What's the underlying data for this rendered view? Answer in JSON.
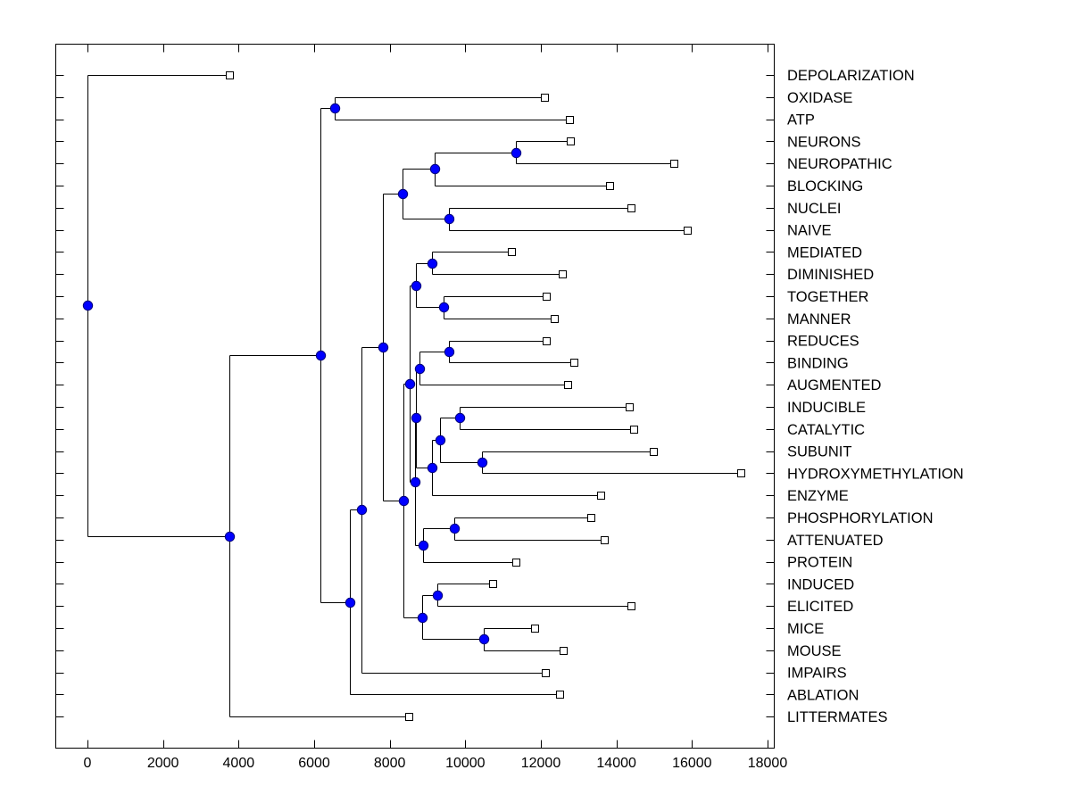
{
  "chart_data": {
    "type": "dendrogram",
    "title": "",
    "xlabel": "",
    "ylabel": "",
    "xlim": [
      -850,
      18170
    ],
    "x_ticks": [
      0,
      2000,
      4000,
      6000,
      8000,
      10000,
      12000,
      14000,
      16000,
      18000
    ],
    "x_tick_labels": [
      "0",
      "2000",
      "4000",
      "6000",
      "8000",
      "10000",
      "12000",
      "14000",
      "16000",
      "18000"
    ],
    "label_position": "right",
    "grid": false,
    "leaf_marker": "white square",
    "node_marker": "blue circle",
    "colors": {
      "node": "#0000ff",
      "leaf": "#ffffff",
      "line": "#000000"
    },
    "leaves": [
      {
        "label": "DEPOLARIZATION",
        "x": 3760
      },
      {
        "label": "OXIDASE",
        "x": 12100
      },
      {
        "label": "ATP",
        "x": 12760
      },
      {
        "label": "NEURONS",
        "x": 12780
      },
      {
        "label": "NEUROPATHIC",
        "x": 15520
      },
      {
        "label": "BLOCKING",
        "x": 13820
      },
      {
        "label": "NUCLEI",
        "x": 14390
      },
      {
        "label": "NAIVE",
        "x": 15880
      },
      {
        "label": "MEDIATED",
        "x": 11220
      },
      {
        "label": "DIMINISHED",
        "x": 12570
      },
      {
        "label": "TOGETHER",
        "x": 12140
      },
      {
        "label": "MANNER",
        "x": 12360
      },
      {
        "label": "REDUCES",
        "x": 12140
      },
      {
        "label": "BINDING",
        "x": 12880
      },
      {
        "label": "AUGMENTED",
        "x": 12710
      },
      {
        "label": "INDUCIBLE",
        "x": 14340
      },
      {
        "label": "CATALYTIC",
        "x": 14460
      },
      {
        "label": "SUBUNIT",
        "x": 14980
      },
      {
        "label": "HYDROXYMETHYLATION",
        "x": 17290
      },
      {
        "label": "ENZYME",
        "x": 13580
      },
      {
        "label": "PHOSPHORYLATION",
        "x": 13320
      },
      {
        "label": "ATTENUATED",
        "x": 13680
      },
      {
        "label": "PROTEIN",
        "x": 11340
      },
      {
        "label": "INDUCED",
        "x": 10720
      },
      {
        "label": "ELICITED",
        "x": 14390
      },
      {
        "label": "MICE",
        "x": 11840
      },
      {
        "label": "MOUSE",
        "x": 12590
      },
      {
        "label": "IMPAIRS",
        "x": 12120
      },
      {
        "label": "ABLATION",
        "x": 12500
      },
      {
        "label": "LITTERMATES",
        "x": 8500
      }
    ],
    "nodes": [
      {
        "id": "n_root",
        "x": 0,
        "children": [
          "L0",
          "n3760"
        ]
      },
      {
        "id": "n3760",
        "x": 3760,
        "children": [
          "n6160",
          "L29"
        ]
      },
      {
        "id": "n6160",
        "x": 6160,
        "children": [
          "n6540",
          "n6950"
        ]
      },
      {
        "id": "n6540",
        "x": 6540,
        "children": [
          "L1",
          "L2"
        ]
      },
      {
        "id": "n6950",
        "x": 6950,
        "children": [
          "n7250",
          "L28"
        ]
      },
      {
        "id": "n7250",
        "x": 7250,
        "children": [
          "n7820",
          "L27"
        ]
      },
      {
        "id": "n7820",
        "x": 7820,
        "children": [
          "n8340",
          "n8360"
        ]
      },
      {
        "id": "n8340",
        "x": 8340,
        "children": [
          "n9190",
          "n9570b"
        ]
      },
      {
        "id": "n9190",
        "x": 9190,
        "children": [
          "n11340",
          "L5"
        ]
      },
      {
        "id": "n11340",
        "x": 11340,
        "children": [
          "L3",
          "L4"
        ]
      },
      {
        "id": "n9570b",
        "x": 9570,
        "children": [
          "L6",
          "L7"
        ]
      },
      {
        "id": "n8360",
        "x": 8360,
        "children": [
          "n8530",
          "n8860"
        ]
      },
      {
        "id": "n8530",
        "x": 8530,
        "children": [
          "n8690a",
          "n8690b"
        ]
      },
      {
        "id": "n8690a",
        "x": 8690,
        "children": [
          "n9120a",
          "n9430"
        ]
      },
      {
        "id": "n9120a",
        "x": 9120,
        "children": [
          "L8",
          "L9"
        ]
      },
      {
        "id": "n9430",
        "x": 9430,
        "children": [
          "L10",
          "L11"
        ]
      },
      {
        "id": "n8690b",
        "x": 8660,
        "children": [
          "n8700",
          "n8880"
        ]
      },
      {
        "id": "n8700",
        "x": 8700,
        "children": [
          "n8790",
          "n9120b"
        ]
      },
      {
        "id": "n8790",
        "x": 8790,
        "children": [
          "n9570a",
          "L14"
        ]
      },
      {
        "id": "n9570a",
        "x": 9570,
        "children": [
          "L12",
          "L13"
        ]
      },
      {
        "id": "n9120b",
        "x": 9120,
        "children": [
          "n9330",
          "L19"
        ]
      },
      {
        "id": "n9330",
        "x": 9330,
        "children": [
          "n9850",
          "n10440"
        ]
      },
      {
        "id": "n9850",
        "x": 9850,
        "children": [
          "L15",
          "L16"
        ]
      },
      {
        "id": "n10440",
        "x": 10440,
        "children": [
          "L17",
          "L18"
        ]
      },
      {
        "id": "n8880",
        "x": 8880,
        "children": [
          "n9710",
          "L22"
        ]
      },
      {
        "id": "n9710",
        "x": 9710,
        "children": [
          "L20",
          "L21"
        ]
      },
      {
        "id": "n8860",
        "x": 8860,
        "children": [
          "n9260",
          "n10490"
        ]
      },
      {
        "id": "n9260",
        "x": 9260,
        "children": [
          "L23",
          "L24"
        ]
      },
      {
        "id": "n10490",
        "x": 10490,
        "children": [
          "L25",
          "L26"
        ]
      }
    ]
  }
}
